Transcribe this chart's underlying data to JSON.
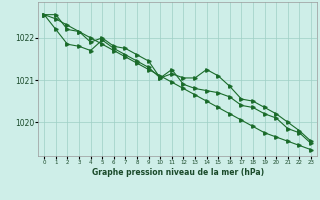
{
  "x": [
    0,
    1,
    2,
    3,
    4,
    5,
    6,
    7,
    8,
    9,
    10,
    11,
    12,
    13,
    14,
    15,
    16,
    17,
    18,
    19,
    20,
    21,
    22,
    23
  ],
  "line_straight": [
    1022.55,
    1022.45,
    1022.3,
    1022.15,
    1022.0,
    1021.85,
    1021.7,
    1021.55,
    1021.4,
    1021.25,
    1021.1,
    1020.95,
    1020.8,
    1020.65,
    1020.5,
    1020.35,
    1020.2,
    1020.05,
    1019.9,
    1019.75,
    1019.65,
    1019.55,
    1019.45,
    1019.35
  ],
  "line_upper": [
    1022.55,
    1022.55,
    1022.2,
    1022.15,
    1021.9,
    1022.0,
    1021.8,
    1021.75,
    1021.6,
    1021.45,
    1021.05,
    1021.15,
    1021.05,
    1021.05,
    1021.25,
    1021.1,
    1020.85,
    1020.55,
    1020.5,
    1020.35,
    1020.2,
    1020.0,
    1019.8,
    1019.55
  ],
  "line_lower": [
    1022.55,
    1022.2,
    1021.85,
    1021.8,
    1021.7,
    1021.95,
    1021.75,
    1021.6,
    1021.45,
    1021.3,
    1021.05,
    1021.25,
    1020.9,
    1020.8,
    1020.75,
    1020.7,
    1020.6,
    1020.4,
    1020.35,
    1020.2,
    1020.1,
    1019.85,
    1019.75,
    1019.5
  ],
  "line_color": "#1a6b2a",
  "bg_color": "#ceeee8",
  "grid_color": "#9ecfc5",
  "text_color": "#1a4a2a",
  "xlabel": "Graphe pression niveau de la mer (hPa)",
  "yticks": [
    1020,
    1021,
    1022
  ],
  "ylim": [
    1019.2,
    1022.85
  ],
  "xlim": [
    -0.5,
    23.5
  ],
  "figwidth": 3.2,
  "figheight": 2.0,
  "dpi": 100
}
